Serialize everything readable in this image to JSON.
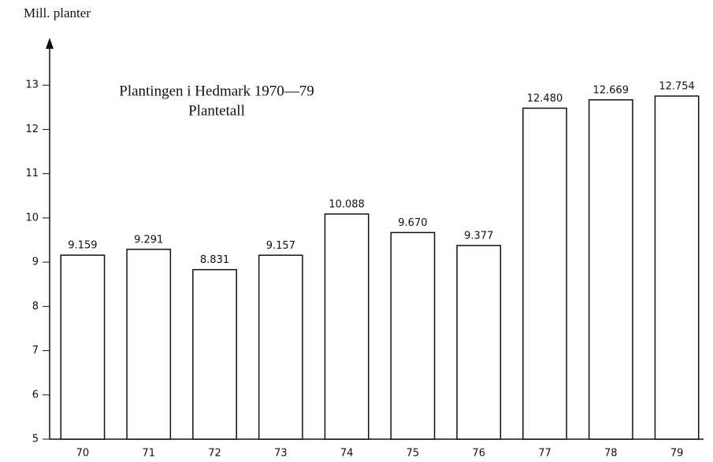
{
  "chart_data": {
    "type": "bar",
    "title": "Plantingen i Hedmark 1970—79",
    "subtitle": "Plantetall",
    "y_label": "Mill. planter",
    "categories": [
      "70",
      "71",
      "72",
      "73",
      "74",
      "75",
      "76",
      "77",
      "78",
      "79"
    ],
    "values": [
      9.159,
      9.291,
      8.831,
      9.157,
      10.088,
      9.67,
      9.377,
      12.48,
      12.669,
      12.754
    ],
    "value_labels": [
      "9.159",
      "9.291",
      "8.831",
      "9.157",
      "10.088",
      "9.670",
      "9.377",
      "12.480",
      "12.669",
      "12.754"
    ],
    "color": "#ffffff",
    "ylim": [
      5,
      14
    ],
    "yticks": [
      5,
      6,
      7,
      8,
      9,
      10,
      11,
      12,
      13
    ],
    "grid": false
  }
}
